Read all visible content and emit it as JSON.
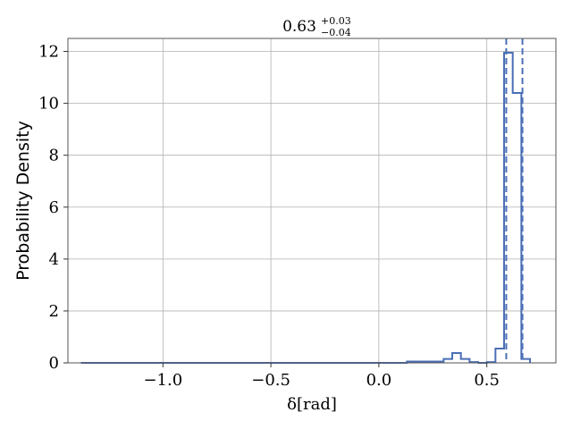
{
  "chart_data": {
    "type": "histogram",
    "title": {
      "base": "0.63",
      "sup": "+0.03",
      "sub": "−0.04"
    },
    "xlabel": "δ[rad]",
    "ylabel": "Probability Density",
    "xlim": [
      -1.44,
      0.82
    ],
    "ylim": [
      0,
      12.5
    ],
    "xticks": [
      -1.0,
      -0.5,
      0.0,
      0.5
    ],
    "xtick_labels": [
      "−1.0",
      "−0.5",
      "0.0",
      "0.5"
    ],
    "yticks": [
      0,
      2,
      4,
      6,
      8,
      10,
      12
    ],
    "ytick_labels": [
      "0",
      "2",
      "4",
      "6",
      "8",
      "10",
      "12"
    ],
    "grid": true,
    "bin_edges": [
      -1.38,
      -1.35,
      0.13,
      0.3,
      0.34,
      0.38,
      0.42,
      0.46,
      0.5,
      0.54,
      0.58,
      0.62,
      0.66,
      0.7
    ],
    "bin_values": [
      0.0,
      0.0,
      0.05,
      0.15,
      0.38,
      0.15,
      0.03,
      0.0,
      0.03,
      0.55,
      11.95,
      10.4,
      0.15
    ],
    "quantile_lines": [
      0.59,
      0.665
    ],
    "color": "#4a6fb5"
  }
}
